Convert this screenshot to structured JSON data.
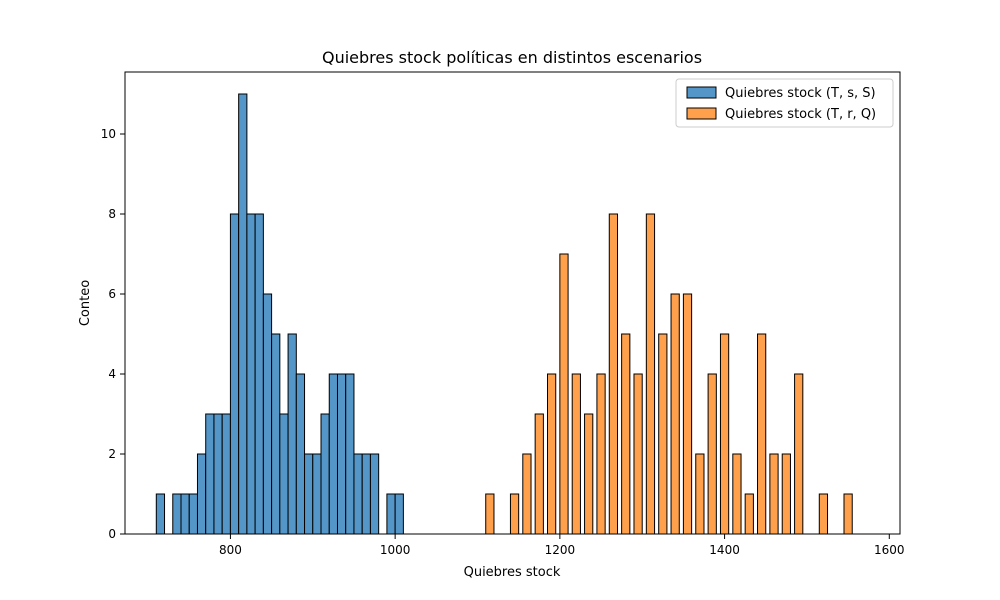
{
  "chart_data": {
    "type": "bar",
    "title": "Quiebres stock políticas en distintos escenarios",
    "xlabel": "Quiebres stock",
    "ylabel": "Conteo",
    "xlim": [
      672,
      1613
    ],
    "ylim": [
      0,
      11.55
    ],
    "xticks": [
      800,
      1000,
      1200,
      1400,
      1600
    ],
    "yticks": [
      0,
      2,
      4,
      6,
      8,
      10
    ],
    "grid": false,
    "legend_position": "top-right",
    "bin_width": 10,
    "series": [
      {
        "name": "Quiebres stock (T, s, S)",
        "color": "#5596c8",
        "bins": [
          {
            "x": 715,
            "count": 1
          },
          {
            "x": 735,
            "count": 1
          },
          {
            "x": 745,
            "count": 1
          },
          {
            "x": 755,
            "count": 1
          },
          {
            "x": 765,
            "count": 2
          },
          {
            "x": 775,
            "count": 3
          },
          {
            "x": 785,
            "count": 3
          },
          {
            "x": 795,
            "count": 3
          },
          {
            "x": 805,
            "count": 8
          },
          {
            "x": 815,
            "count": 11
          },
          {
            "x": 825,
            "count": 8
          },
          {
            "x": 835,
            "count": 8
          },
          {
            "x": 845,
            "count": 6
          },
          {
            "x": 855,
            "count": 5
          },
          {
            "x": 865,
            "count": 3
          },
          {
            "x": 875,
            "count": 5
          },
          {
            "x": 885,
            "count": 4
          },
          {
            "x": 895,
            "count": 2
          },
          {
            "x": 905,
            "count": 2
          },
          {
            "x": 915,
            "count": 3
          },
          {
            "x": 925,
            "count": 4
          },
          {
            "x": 935,
            "count": 4
          },
          {
            "x": 945,
            "count": 4
          },
          {
            "x": 955,
            "count": 2
          },
          {
            "x": 965,
            "count": 2
          },
          {
            "x": 975,
            "count": 2
          },
          {
            "x": 995,
            "count": 1
          },
          {
            "x": 1005,
            "count": 1
          }
        ]
      },
      {
        "name": "Quiebres stock (T, r, Q)",
        "color": "#ffa04c",
        "bins": [
          {
            "x": 1115,
            "count": 1
          },
          {
            "x": 1145,
            "count": 1
          },
          {
            "x": 1160,
            "count": 2
          },
          {
            "x": 1175,
            "count": 3
          },
          {
            "x": 1190,
            "count": 4
          },
          {
            "x": 1205,
            "count": 7
          },
          {
            "x": 1220,
            "count": 4
          },
          {
            "x": 1235,
            "count": 3
          },
          {
            "x": 1250,
            "count": 4
          },
          {
            "x": 1265,
            "count": 8
          },
          {
            "x": 1280,
            "count": 5
          },
          {
            "x": 1295,
            "count": 4
          },
          {
            "x": 1310,
            "count": 8
          },
          {
            "x": 1325,
            "count": 5
          },
          {
            "x": 1340,
            "count": 6
          },
          {
            "x": 1355,
            "count": 6
          },
          {
            "x": 1370,
            "count": 2
          },
          {
            "x": 1385,
            "count": 4
          },
          {
            "x": 1400,
            "count": 5
          },
          {
            "x": 1415,
            "count": 2
          },
          {
            "x": 1430,
            "count": 1
          },
          {
            "x": 1445,
            "count": 5
          },
          {
            "x": 1460,
            "count": 2
          },
          {
            "x": 1475,
            "count": 2
          },
          {
            "x": 1490,
            "count": 4
          },
          {
            "x": 1520,
            "count": 1
          },
          {
            "x": 1550,
            "count": 1
          }
        ]
      }
    ]
  }
}
